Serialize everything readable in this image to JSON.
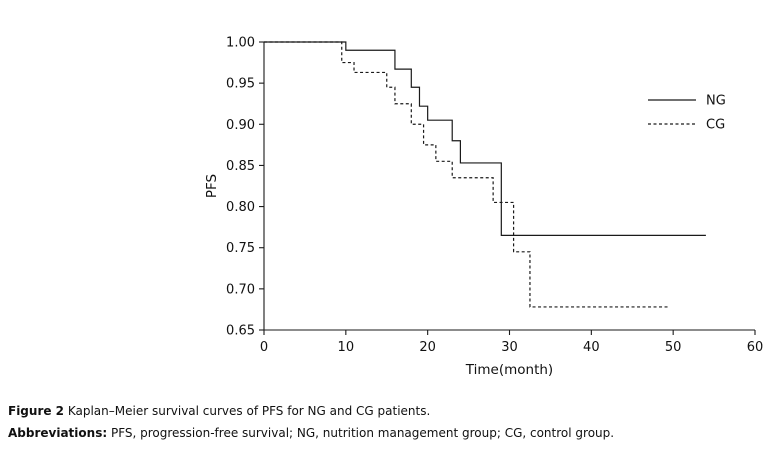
{
  "caption": {
    "figure_label": "Figure 2",
    "figure_text": " Kaplan–Meier survival curves of PFS for NG and CG patients.",
    "abbreviations_label": "Abbreviations:",
    "abbreviations_text": " PFS, progression-free survival; NG, nutrition management group; CG, control group."
  },
  "chart_data": {
    "type": "line",
    "subtype": "kaplan-meier-step",
    "title": "",
    "xlabel": "Time(month)",
    "ylabel": "PFS",
    "xlim": [
      0,
      60
    ],
    "ylim": [
      0.65,
      1.0
    ],
    "xticks": [
      0,
      10,
      20,
      30,
      40,
      50,
      60
    ],
    "yticks": [
      "1.00",
      "0.95",
      "0.90",
      "0.85",
      "0.80",
      "0.75",
      "0.70",
      "0.65"
    ],
    "grid": false,
    "legend_position": "right-inside",
    "line_color": "#1a1a1a",
    "series": [
      {
        "name": "NG",
        "line_style": "solid",
        "points": [
          [
            0,
            1.0
          ],
          [
            10,
            0.99
          ],
          [
            16,
            0.967
          ],
          [
            18,
            0.945
          ],
          [
            19,
            0.922
          ],
          [
            20,
            0.905
          ],
          [
            23,
            0.88
          ],
          [
            24,
            0.853
          ],
          [
            29,
            0.765
          ]
        ],
        "end_time": 54
      },
      {
        "name": "CG",
        "line_style": "dashed",
        "points": [
          [
            0,
            1.0
          ],
          [
            9.5,
            0.975
          ],
          [
            11,
            0.963
          ],
          [
            15,
            0.945
          ],
          [
            16,
            0.925
          ],
          [
            18,
            0.9
          ],
          [
            19.5,
            0.875
          ],
          [
            21,
            0.855
          ],
          [
            23,
            0.835
          ],
          [
            28,
            0.805
          ],
          [
            30.5,
            0.745
          ],
          [
            32.5,
            0.678
          ]
        ],
        "end_time": 49.5
      }
    ]
  }
}
